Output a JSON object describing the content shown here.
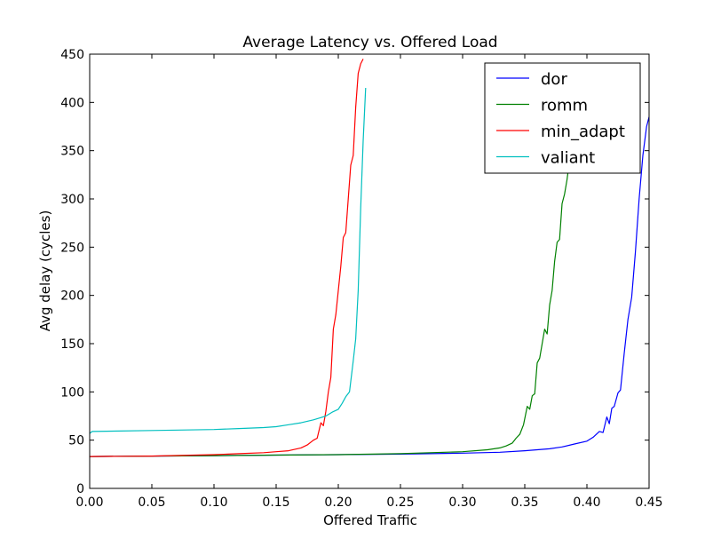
{
  "chart_data": {
    "type": "line",
    "title": "Average Latency vs. Offered Load",
    "xlabel": "Offered Traffic",
    "ylabel": "Avg delay (cycles)",
    "xlim": [
      0.0,
      0.45
    ],
    "ylim": [
      0,
      450
    ],
    "xticks": [
      0.0,
      0.05,
      0.1,
      0.15,
      0.2,
      0.25,
      0.3,
      0.35,
      0.4,
      0.45
    ],
    "xtick_labels": [
      "0.00",
      "0.05",
      "0.10",
      "0.15",
      "0.20",
      "0.25",
      "0.30",
      "0.35",
      "0.40",
      "0.45"
    ],
    "yticks": [
      0,
      50,
      100,
      150,
      200,
      250,
      300,
      350,
      400,
      450
    ],
    "ytick_labels": [
      "0",
      "50",
      "100",
      "150",
      "200",
      "250",
      "300",
      "350",
      "400",
      "450"
    ],
    "grid": false,
    "legend_position": "top-right",
    "series": [
      {
        "name": "dor",
        "color": "#0000ff",
        "x": [
          0.0,
          0.05,
          0.1,
          0.15,
          0.2,
          0.25,
          0.3,
          0.33,
          0.35,
          0.37,
          0.38,
          0.39,
          0.4,
          0.405,
          0.41,
          0.413,
          0.416,
          0.418,
          0.42,
          0.422,
          0.425,
          0.427,
          0.43,
          0.433,
          0.436,
          0.439,
          0.442,
          0.445,
          0.448,
          0.45
        ],
        "y": [
          33,
          33.5,
          34,
          34.5,
          35,
          35.5,
          36.5,
          37.5,
          39,
          41,
          43,
          46,
          49,
          53,
          59,
          58,
          74,
          67,
          83,
          85,
          99,
          102,
          140,
          175,
          198,
          245,
          300,
          345,
          375,
          385
        ]
      },
      {
        "name": "romm",
        "color": "#008000",
        "x": [
          0.0,
          0.05,
          0.1,
          0.15,
          0.2,
          0.25,
          0.3,
          0.32,
          0.33,
          0.335,
          0.34,
          0.343,
          0.346,
          0.349,
          0.352,
          0.354,
          0.356,
          0.358,
          0.36,
          0.362,
          0.364,
          0.366,
          0.368,
          0.37,
          0.372,
          0.374,
          0.376,
          0.378,
          0.38,
          0.382,
          0.384,
          0.386,
          0.388
        ],
        "y": [
          33,
          33.5,
          34,
          34.5,
          35,
          36,
          38,
          40,
          42,
          44,
          47,
          52,
          56,
          66,
          85,
          82,
          96,
          98,
          130,
          135,
          150,
          165,
          160,
          190,
          205,
          235,
          255,
          258,
          295,
          305,
          320,
          340,
          360
        ]
      },
      {
        "name": "min_adapt",
        "color": "#ff0000",
        "x": [
          0.0,
          0.05,
          0.1,
          0.12,
          0.14,
          0.15,
          0.16,
          0.17,
          0.175,
          0.18,
          0.183,
          0.186,
          0.188,
          0.19,
          0.192,
          0.194,
          0.196,
          0.198,
          0.2,
          0.202,
          0.204,
          0.206,
          0.208,
          0.21,
          0.212,
          0.214,
          0.216,
          0.218,
          0.22
        ],
        "y": [
          33,
          33.5,
          35,
          36,
          37,
          38,
          39,
          42,
          45,
          50,
          52,
          68,
          65,
          80,
          100,
          115,
          165,
          180,
          205,
          230,
          260,
          265,
          300,
          335,
          345,
          395,
          430,
          440,
          445
        ]
      },
      {
        "name": "valiant",
        "color": "#00bfbf",
        "x": [
          0.0,
          0.002,
          0.05,
          0.1,
          0.12,
          0.14,
          0.15,
          0.16,
          0.17,
          0.18,
          0.185,
          0.19,
          0.195,
          0.2,
          0.203,
          0.206,
          0.209,
          0.212,
          0.214,
          0.216,
          0.218,
          0.22,
          0.222
        ],
        "y": [
          57,
          59,
          60,
          61,
          62,
          63,
          64,
          66,
          68,
          71,
          73,
          75,
          79,
          82,
          88,
          95,
          100,
          132,
          155,
          205,
          290,
          360,
          415
        ]
      }
    ]
  }
}
